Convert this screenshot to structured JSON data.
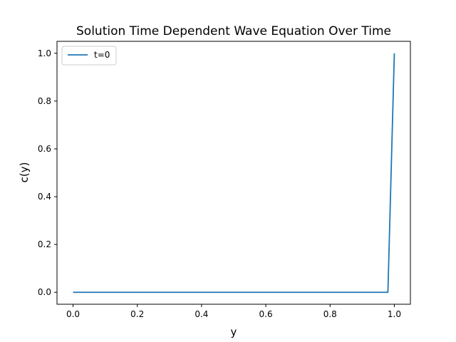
{
  "chart_data": {
    "type": "line",
    "title": "Solution Time Dependent Wave Equation Over Time",
    "xlabel": "y",
    "ylabel": "c(y)",
    "xlim": [
      -0.05,
      1.05
    ],
    "ylim": [
      -0.05,
      1.05
    ],
    "xticks": [
      0.0,
      0.2,
      0.4,
      0.6,
      0.8,
      1.0
    ],
    "xtick_labels": [
      "0.0",
      "0.2",
      "0.4",
      "0.6",
      "0.8",
      "1.0"
    ],
    "yticks": [
      0.0,
      0.2,
      0.4,
      0.6,
      0.8,
      1.0
    ],
    "ytick_labels": [
      "0.0",
      "0.2",
      "0.4",
      "0.6",
      "0.8",
      "1.0"
    ],
    "grid": false,
    "legend": "top-left",
    "series": [
      {
        "name": "t=0",
        "color": "#1f77b4",
        "x": [
          0.0,
          0.98,
          1.0
        ],
        "y": [
          0.0,
          0.0,
          1.0
        ]
      }
    ]
  }
}
